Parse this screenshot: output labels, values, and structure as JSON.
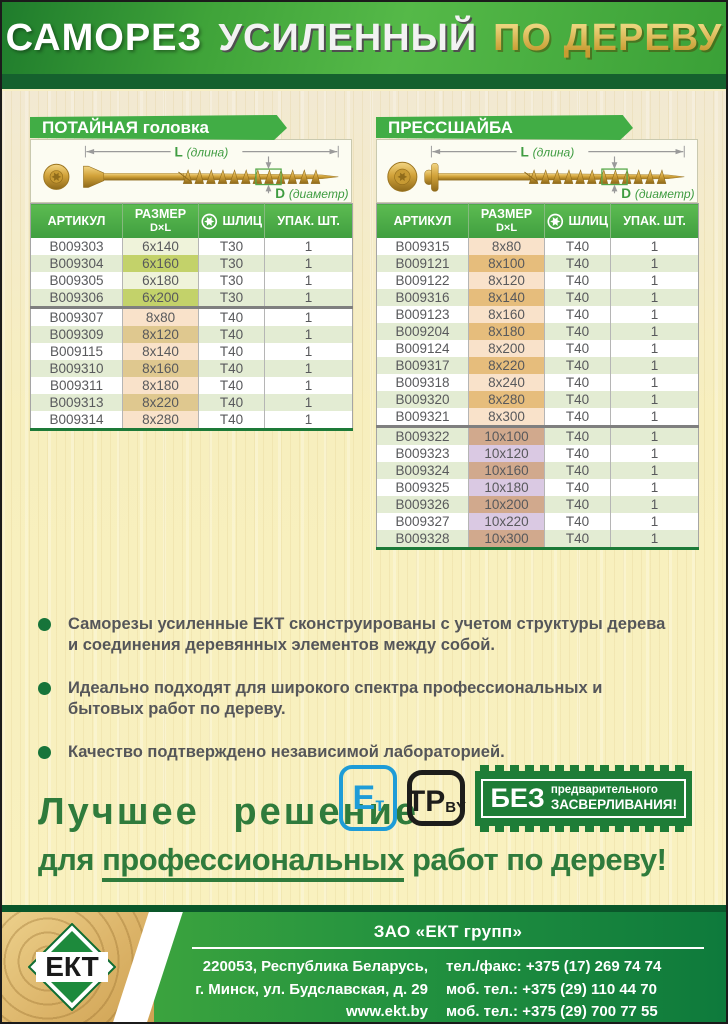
{
  "header": {
    "title_part1": "САМОРЕЗ",
    "title_part2": "УСИЛЕННЫЙ",
    "title_part3": "ПО ДЕРЕВУ"
  },
  "columns": {
    "article": "АРТИКУЛ",
    "size_line1": "РАЗМЕР",
    "size_line2": "D×L",
    "slot": "ШЛИЦ",
    "pack": "УПАК. ШТ."
  },
  "diagram_labels": {
    "length_letter": "L",
    "length_word": "(длина)",
    "diameter_letter": "D",
    "diameter_word": "(диаметр)"
  },
  "tones": {
    "green_light": "#eff3da",
    "green_dark": "#c3d26a",
    "peach_light": "#f9e2ca",
    "peach_dark": "#dfc88f",
    "orange_dark": "#e6bd7c",
    "brown": "#d1a98d",
    "purple": "#dac9e3"
  },
  "tables": [
    {
      "banner": "ПОТАЙНАЯ головка",
      "rows": [
        {
          "article": "B009303",
          "size": "6x140",
          "slot": "T30",
          "pack": "1",
          "tone": "green_light"
        },
        {
          "article": "B009304",
          "size": "6x160",
          "slot": "T30",
          "pack": "1",
          "tone": "green_dark"
        },
        {
          "article": "B009305",
          "size": "6x180",
          "slot": "T30",
          "pack": "1",
          "tone": "green_light"
        },
        {
          "article": "B009306",
          "size": "6x200",
          "slot": "T30",
          "pack": "1",
          "tone": "green_dark"
        },
        {
          "article": "B009307",
          "size": "8x80",
          "slot": "T40",
          "pack": "1",
          "tone": "peach_light",
          "group_start": true
        },
        {
          "article": "B009309",
          "size": "8x120",
          "slot": "T40",
          "pack": "1",
          "tone": "peach_dark"
        },
        {
          "article": "B009115",
          "size": "8x140",
          "slot": "T40",
          "pack": "1",
          "tone": "peach_light"
        },
        {
          "article": "B009310",
          "size": "8x160",
          "slot": "T40",
          "pack": "1",
          "tone": "peach_dark"
        },
        {
          "article": "B009311",
          "size": "8x180",
          "slot": "T40",
          "pack": "1",
          "tone": "peach_light"
        },
        {
          "article": "B009313",
          "size": "8x220",
          "slot": "T40",
          "pack": "1",
          "tone": "peach_dark"
        },
        {
          "article": "B009314",
          "size": "8x280",
          "slot": "T40",
          "pack": "1",
          "tone": "peach_light"
        }
      ]
    },
    {
      "banner": "ПРЕССШАЙБА",
      "rows": [
        {
          "article": "B009315",
          "size": "8x80",
          "slot": "T40",
          "pack": "1",
          "tone": "peach_light"
        },
        {
          "article": "B009121",
          "size": "8x100",
          "slot": "T40",
          "pack": "1",
          "tone": "orange_dark"
        },
        {
          "article": "B009122",
          "size": "8x120",
          "slot": "T40",
          "pack": "1",
          "tone": "peach_light"
        },
        {
          "article": "B009316",
          "size": "8x140",
          "slot": "T40",
          "pack": "1",
          "tone": "orange_dark"
        },
        {
          "article": "B009123",
          "size": "8x160",
          "slot": "T40",
          "pack": "1",
          "tone": "peach_light"
        },
        {
          "article": "B009204",
          "size": "8x180",
          "slot": "T40",
          "pack": "1",
          "tone": "orange_dark"
        },
        {
          "article": "B009124",
          "size": "8x200",
          "slot": "T40",
          "pack": "1",
          "tone": "peach_light"
        },
        {
          "article": "B009317",
          "size": "8x220",
          "slot": "T40",
          "pack": "1",
          "tone": "orange_dark"
        },
        {
          "article": "B009318",
          "size": "8x240",
          "slot": "T40",
          "pack": "1",
          "tone": "peach_light"
        },
        {
          "article": "B009320",
          "size": "8x280",
          "slot": "T40",
          "pack": "1",
          "tone": "orange_dark"
        },
        {
          "article": "B009321",
          "size": "8x300",
          "slot": "T40",
          "pack": "1",
          "tone": "peach_light"
        },
        {
          "article": "B009322",
          "size": "10x100",
          "slot": "T40",
          "pack": "1",
          "tone": "brown",
          "group_start": true
        },
        {
          "article": "B009323",
          "size": "10x120",
          "slot": "T40",
          "pack": "1",
          "tone": "purple"
        },
        {
          "article": "B009324",
          "size": "10x160",
          "slot": "T40",
          "pack": "1",
          "tone": "brown"
        },
        {
          "article": "B009325",
          "size": "10x180",
          "slot": "T40",
          "pack": "1",
          "tone": "purple"
        },
        {
          "article": "B009326",
          "size": "10x200",
          "slot": "T40",
          "pack": "1",
          "tone": "brown"
        },
        {
          "article": "B009327",
          "size": "10x220",
          "slot": "T40",
          "pack": "1",
          "tone": "purple"
        },
        {
          "article": "B009328",
          "size": "10x300",
          "slot": "T40",
          "pack": "1",
          "tone": "brown"
        }
      ]
    }
  ],
  "bullets": [
    "Саморезы усиленные ЕКТ сконструированы с учетом структуры дерева и соединения деревянных элементов между собой.",
    "Идеально подходят для широкого спектра профессиональных и бытовых работ по дереву.",
    "Качество подтверждено независимой лабораторией."
  ],
  "slogan": {
    "line1": "Лучшее решение",
    "line2_part1": "для ",
    "line2_part2": "профессиональных",
    "line2_part3": " работ по дереву!"
  },
  "badges": {
    "et": {
      "letter": "Е",
      "sub": "т"
    },
    "tp": {
      "letters": "ТР",
      "sub": "BY"
    },
    "bez": {
      "word": "БЕЗ",
      "line1": "предварительного",
      "line2": "ЗАСВЕРЛИВАНИЯ!"
    }
  },
  "footer": {
    "company": "ЗАО «ЕКТ групп»",
    "address_line1": "220053,  Республика  Беларусь,",
    "address_line2": "г. Минск, ул. Будславская, д. 29",
    "website": "www.ekt.by",
    "phone1": "тел./факс: +375 (17) 269 74 74",
    "phone2": "моб. тел.: +375 (29) 110 44 70",
    "phone3": "моб. тел.: +375 (29) 700 77 55",
    "logo_text": "ЕКТ"
  },
  "colors": {
    "header_green": "#3fa339",
    "dark_green_band": "#15612e",
    "banner_green": "#41ad45",
    "table_header_green": "#4aae47",
    "table_bottom_green": "#1d7a38",
    "row_alt_green": "#e3ecd3",
    "bullet_green": "#17743a",
    "slogan_green": "#2f7b3c",
    "badge_blue": "#1e9cd7",
    "badge_black": "#1d1d1b",
    "badge_bez_green": "#1e7d37",
    "footer_green_left": "#4aae3e",
    "footer_green_right": "#0e7a3c",
    "gold": "#d2a33a"
  }
}
